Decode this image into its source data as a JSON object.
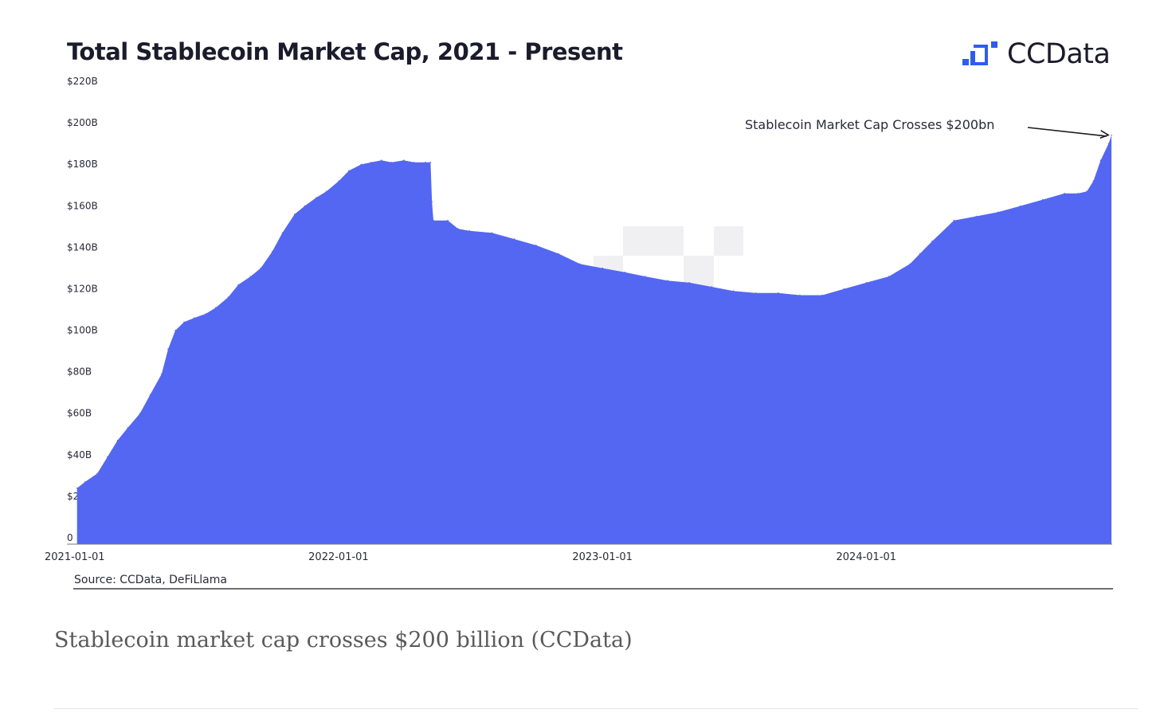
{
  "caption": "Stablecoin market cap crosses $200 billion (CCData)",
  "brand": {
    "name": "CCData",
    "logo_icon": "ccdata-logo-icon",
    "logo_color": "#2f5cf0"
  },
  "chart_data": {
    "type": "area",
    "title": "Total Stablecoin Market Cap, 2021 - Present",
    "xlabel": "",
    "ylabel": "",
    "source": "Source: CCData, DeFiLlama",
    "fill_color": "#5467f2",
    "annotation": {
      "text": "Stablecoin Market Cap Crosses $200bn",
      "x": "2024-12-05",
      "y": 197
    },
    "ylim": [
      0,
      220
    ],
    "y_ticks": [
      {
        "value": 0,
        "label": "0"
      },
      {
        "value": 20,
        "label": "$20B"
      },
      {
        "value": 40,
        "label": "$40B"
      },
      {
        "value": 60,
        "label": "$60B"
      },
      {
        "value": 80,
        "label": "$80B"
      },
      {
        "value": 100,
        "label": "$100B"
      },
      {
        "value": 120,
        "label": "$120B"
      },
      {
        "value": 140,
        "label": "$140B"
      },
      {
        "value": 160,
        "label": "$160B"
      },
      {
        "value": 180,
        "label": "$180B"
      },
      {
        "value": 200,
        "label": "$200B"
      },
      {
        "value": 220,
        "label": "$220B"
      }
    ],
    "x_ticks": [
      "2021-01-01",
      "2022-01-01",
      "2023-01-01",
      "2024-01-01"
    ],
    "xlim": [
      "2021-01-01",
      "2024-12-06"
    ],
    "x": [
      "2021-01-04",
      "2021-01-15",
      "2021-02-01",
      "2021-02-15",
      "2021-03-01",
      "2021-03-15",
      "2021-04-01",
      "2021-04-15",
      "2021-05-01",
      "2021-05-10",
      "2021-05-20",
      "2021-06-01",
      "2021-06-15",
      "2021-07-01",
      "2021-07-15",
      "2021-08-01",
      "2021-08-15",
      "2021-09-01",
      "2021-09-15",
      "2021-10-01",
      "2021-10-15",
      "2021-11-01",
      "2021-11-15",
      "2021-12-01",
      "2021-12-15",
      "2022-01-01",
      "2022-01-15",
      "2022-02-01",
      "2022-02-15",
      "2022-03-01",
      "2022-03-15",
      "2022-04-01",
      "2022-04-15",
      "2022-05-01",
      "2022-05-08",
      "2022-05-10",
      "2022-05-12",
      "2022-06-01",
      "2022-06-15",
      "2022-07-01",
      "2022-08-01",
      "2022-09-01",
      "2022-10-01",
      "2022-11-01",
      "2022-12-01",
      "2023-01-01",
      "2023-02-01",
      "2023-03-01",
      "2023-04-01",
      "2023-05-01",
      "2023-06-01",
      "2023-07-01",
      "2023-08-01",
      "2023-09-01",
      "2023-10-01",
      "2023-11-01",
      "2023-12-01",
      "2024-01-01",
      "2024-02-01",
      "2024-03-01",
      "2024-03-15",
      "2024-04-01",
      "2024-05-01",
      "2024-06-01",
      "2024-07-01",
      "2024-08-01",
      "2024-09-01",
      "2024-10-01",
      "2024-10-20",
      "2024-11-01",
      "2024-11-10",
      "2024-11-20",
      "2024-12-01",
      "2024-12-05"
    ],
    "series": [
      {
        "values": [
          27,
          30,
          34,
          42,
          50,
          56,
          63,
          72,
          82,
          94,
          103,
          107,
          109,
          111,
          114,
          119,
          125,
          129,
          133,
          141,
          150,
          159,
          163,
          167,
          170,
          175,
          180,
          183,
          184,
          185,
          184,
          185,
          184,
          184,
          184,
          165,
          156,
          156,
          152,
          151,
          150,
          147,
          144,
          140,
          135,
          133,
          131,
          129,
          127,
          126,
          124,
          122,
          121,
          121,
          120,
          120,
          123,
          126,
          129,
          135,
          140,
          146,
          156,
          158,
          160,
          163,
          166,
          169,
          169,
          170,
          175,
          185,
          193,
          197
        ]
      }
    ]
  }
}
